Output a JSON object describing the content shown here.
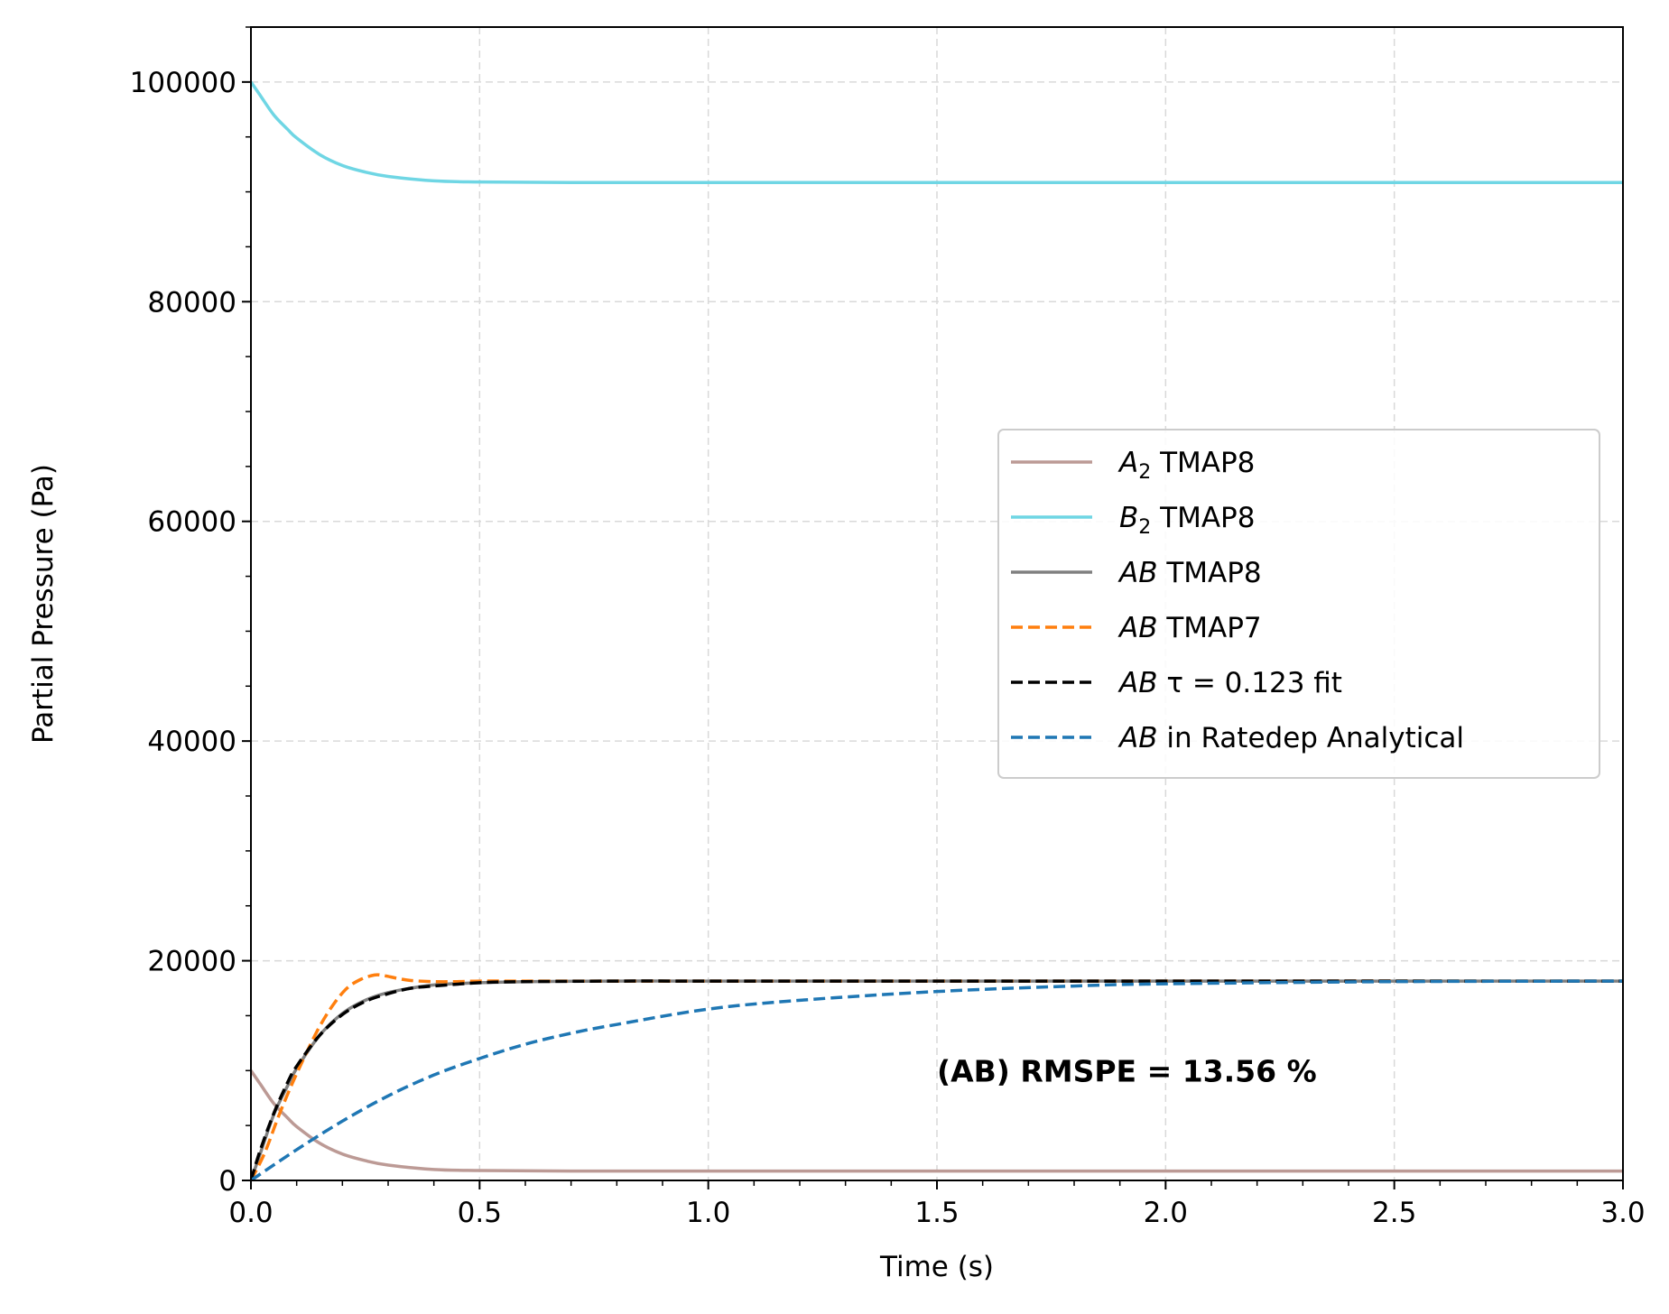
{
  "chart_data": {
    "type": "line",
    "xlabel": "Time (s)",
    "ylabel": "Partial Pressure (Pa)",
    "xlim": [
      0,
      3
    ],
    "ylim": [
      0,
      105000
    ],
    "grid": true,
    "legend_position": "center-right",
    "x_ticks": [
      0,
      0.5,
      1,
      1.5,
      2,
      2.5,
      3
    ],
    "x_tick_labels": [
      "0.0",
      "0.5",
      "1.0",
      "1.5",
      "2.0",
      "2.5",
      "3.0"
    ],
    "y_ticks": [
      0,
      20000,
      40000,
      60000,
      80000,
      100000
    ],
    "y_tick_labels": [
      "0",
      "20000",
      "40000",
      "60000",
      "80000",
      "100000"
    ],
    "annotation": {
      "text": "(AB) RMSPE = 13.56 %",
      "x": 1.5,
      "y": 10000
    },
    "series": [
      {
        "name": "A2 TMAP8",
        "legend_main": "A",
        "legend_sub": "2",
        "legend_rest": " TMAP8",
        "color": "#bc9a95",
        "dash": "solid",
        "x": [
          0,
          0.02,
          0.05,
          0.08,
          0.1,
          0.15,
          0.2,
          0.25,
          0.3,
          0.4,
          0.5,
          0.7,
          1,
          1.5,
          2,
          2.5,
          3
        ],
        "y": [
          10000,
          8800,
          7000,
          5700,
          4900,
          3400,
          2400,
          1800,
          1400,
          1000,
          900,
          850,
          850,
          850,
          850,
          850,
          850
        ]
      },
      {
        "name": "B2 TMAP8",
        "legend_main": "B",
        "legend_sub": "2",
        "legend_rest": " TMAP8",
        "color": "#6fd6e4",
        "dash": "solid",
        "x": [
          0,
          0.02,
          0.05,
          0.08,
          0.1,
          0.15,
          0.2,
          0.25,
          0.3,
          0.4,
          0.5,
          0.7,
          1,
          1.5,
          2,
          2.5,
          3
        ],
        "y": [
          100000,
          98800,
          97000,
          95700,
          94900,
          93400,
          92400,
          91800,
          91400,
          91000,
          90900,
          90850,
          90850,
          90850,
          90850,
          90850,
          90850
        ]
      },
      {
        "name": "AB TMAP8",
        "legend_main": "AB",
        "legend_sub": "",
        "legend_rest": " TMAP8",
        "color": "#808080",
        "dash": "solid",
        "x": [
          0,
          0.02,
          0.05,
          0.08,
          0.1,
          0.15,
          0.2,
          0.25,
          0.3,
          0.35,
          0.4,
          0.5,
          0.6,
          0.8,
          1,
          1.5,
          2,
          2.5,
          3
        ],
        "y": [
          0,
          2400,
          6000,
          8600,
          10200,
          13200,
          15200,
          16400,
          17100,
          17500,
          17800,
          18000,
          18100,
          18150,
          18150,
          18150,
          18150,
          18150,
          18150
        ]
      },
      {
        "name": "AB TMAP7",
        "legend_main": "AB",
        "legend_sub": "",
        "legend_rest": " TMAP7",
        "color": "#ff7f0e",
        "dash": "dashed",
        "x": [
          0,
          0.03,
          0.06,
          0.09,
          0.12,
          0.15,
          0.18,
          0.21,
          0.24,
          0.27,
          0.29,
          0.32,
          0.35,
          0.4,
          0.45,
          0.5,
          0.6,
          0.8,
          1,
          1.5,
          2,
          2.5,
          3
        ],
        "y": [
          0,
          2500,
          5800,
          8800,
          11500,
          14000,
          16000,
          17500,
          18300,
          18700,
          18650,
          18400,
          18200,
          18100,
          18100,
          18150,
          18150,
          18150,
          18150,
          18150,
          18150,
          18150,
          18150
        ]
      },
      {
        "name": "AB τ = 0.123 fit",
        "legend_main": "AB",
        "legend_sub": "",
        "legend_rest": " τ = 0.123 fit",
        "color": "#000000",
        "dash": "dashed",
        "x": [
          0,
          0.02,
          0.05,
          0.08,
          0.1,
          0.15,
          0.2,
          0.25,
          0.3,
          0.35,
          0.4,
          0.5,
          0.6,
          0.8,
          1,
          1.5,
          2,
          2.5,
          3
        ],
        "y": [
          0,
          2700,
          6100,
          8900,
          10400,
          13200,
          15100,
          16300,
          17000,
          17500,
          17700,
          18000,
          18100,
          18150,
          18150,
          18150,
          18150,
          18150,
          18150
        ]
      },
      {
        "name": "AB in Ratedep Analytical",
        "legend_main": "AB",
        "legend_sub": "",
        "legend_rest": " in Ratedep Analytical",
        "color": "#1f77b4",
        "dash": "dashed",
        "x": [
          0,
          0.1,
          0.2,
          0.3,
          0.4,
          0.5,
          0.6,
          0.7,
          0.8,
          1,
          1.2,
          1.5,
          1.8,
          2,
          2.5,
          3
        ],
        "y": [
          0,
          2800,
          5400,
          7700,
          9600,
          11100,
          12400,
          13400,
          14200,
          15600,
          16400,
          17200,
          17700,
          17900,
          18100,
          18150
        ]
      }
    ]
  }
}
